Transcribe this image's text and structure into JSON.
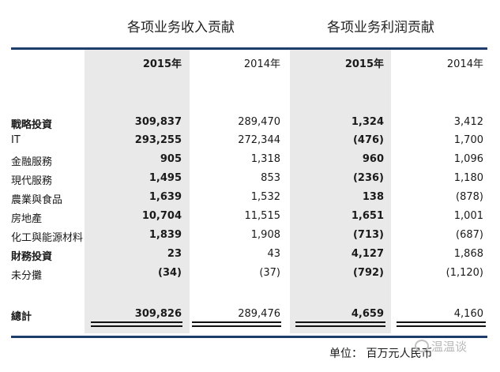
{
  "headers": {
    "revenue_title": "各项业务收入贡献",
    "profit_title": "各项业务利润贡献",
    "years": [
      "2015年",
      "2014年",
      "2015年",
      "2014年"
    ]
  },
  "rows": [
    {
      "label": "戰略投資",
      "bold": true,
      "values": [
        "309,837",
        "289,470",
        "1,324",
        "3,412"
      ]
    },
    {
      "label": "IT",
      "bold": false,
      "values": [
        "293,255",
        "272,344",
        "(476)",
        "1,700"
      ]
    },
    {
      "label": "金融服務",
      "bold": false,
      "values": [
        "905",
        "1,318",
        "960",
        "1,096"
      ]
    },
    {
      "label": "現代服務",
      "bold": false,
      "values": [
        "1,495",
        "853",
        "(236)",
        "1,180"
      ]
    },
    {
      "label": "農業與食品",
      "bold": false,
      "values": [
        "1,639",
        "1,532",
        "138",
        "(878)"
      ]
    },
    {
      "label": "房地產",
      "bold": false,
      "values": [
        "10,704",
        "11,515",
        "1,651",
        "1,001"
      ]
    },
    {
      "label": "化工與能源材料",
      "bold": false,
      "values": [
        "1,839",
        "1,908",
        "(713)",
        "(687)"
      ]
    },
    {
      "label": "財務投資",
      "bold": true,
      "values": [
        "23",
        "43",
        "4,127",
        "1,868"
      ]
    },
    {
      "label": "未分攤",
      "bold": false,
      "values": [
        "(34)",
        "(37)",
        "(792)",
        "(1,120)"
      ]
    }
  ],
  "total": {
    "label": "總計",
    "values": [
      "309,826",
      "289,476",
      "4,659",
      "4,160"
    ]
  },
  "unit_note": "单位：  百万元人民币",
  "watermark": "温温谈"
}
